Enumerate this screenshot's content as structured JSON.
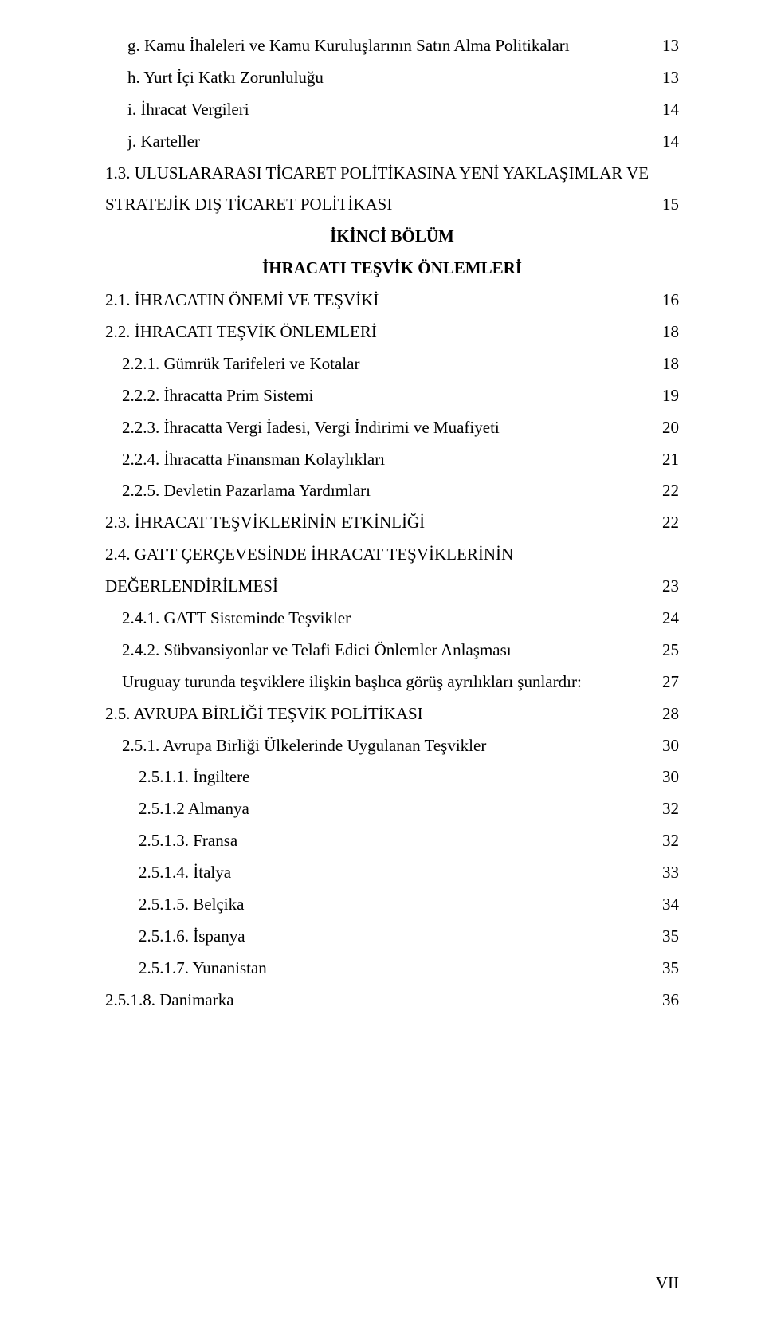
{
  "section_heading_1": "İKİNCİ BÖLÜM",
  "section_heading_2": "İHRACATI TEŞVİK ÖNLEMLERİ",
  "page_number": "VII",
  "entries": [
    {
      "indent": "indent0",
      "title": "g. Kamu İhaleleri ve Kamu Kuruluşlarının Satın Alma Politikaları",
      "page": "13"
    },
    {
      "indent": "indent0",
      "title": "h. Yurt İçi Katkı Zorunluluğu",
      "page": "13"
    },
    {
      "indent": "indent0",
      "title": "i. İhracat Vergileri",
      "page": "14"
    },
    {
      "indent": "indent0",
      "title": "j. Karteller",
      "page": "14"
    },
    {
      "indent": "indent1",
      "title_a": "1.3. ULUSLARARASI TİCARET POLİTİKASINA YENİ YAKLAŞIMLAR VE",
      "title_b": "STRATEJİK DIŞ TİCARET POLİTİKASI",
      "page": "15",
      "multiline": true
    },
    {
      "heading": true
    },
    {
      "indent": "indent1",
      "title": "2.1. İHRACATIN ÖNEMİ VE TEŞVİKİ",
      "page": "16"
    },
    {
      "indent": "indent1",
      "title": "2.2. İHRACATI TEŞVİK ÖNLEMLERİ",
      "page": "18"
    },
    {
      "indent": "indent2",
      "title": "2.2.1. Gümrük Tarifeleri ve Kotalar",
      "page": "18"
    },
    {
      "indent": "indent2",
      "title": "2.2.2. İhracatta Prim Sistemi",
      "page": "19"
    },
    {
      "indent": "indent2",
      "title": "2.2.3. İhracatta Vergi İadesi, Vergi İndirimi ve Muafiyeti",
      "page": "20"
    },
    {
      "indent": "indent2",
      "title": "2.2.4. İhracatta Finansman Kolaylıkları",
      "page": "21"
    },
    {
      "indent": "indent2",
      "title": "2.2.5. Devletin Pazarlama Yardımları",
      "page": "22"
    },
    {
      "indent": "indent1",
      "title": "2.3. İHRACAT TEŞVİKLERİNİN ETKİNLİĞİ",
      "page": "22"
    },
    {
      "indent": "indent1",
      "title_a": "2.4. GATT ÇERÇEVESİNDE İHRACAT TEŞVİKLERİNİN",
      "title_b": "DEĞERLENDİRİLMESİ",
      "page": "23",
      "multiline": true
    },
    {
      "indent": "indent2",
      "title": "2.4.1. GATT Sisteminde Teşvikler",
      "page": "24"
    },
    {
      "indent": "indent2",
      "title": "2.4.2. Sübvansiyonlar ve Telafi Edici Önlemler Anlaşması",
      "page": "25"
    },
    {
      "indent": "indent2",
      "title": "Uruguay turunda teşviklere ilişkin başlıca görüş ayrılıkları şunlardır:",
      "page": "27"
    },
    {
      "indent": "indent1",
      "title": "2.5. AVRUPA BİRLİĞİ TEŞVİK POLİTİKASI",
      "page": "28"
    },
    {
      "indent": "indent2",
      "title": "2.5.1. Avrupa Birliği Ülkelerinde Uygulanan Teşvikler",
      "page": "30"
    },
    {
      "indent": "indent3",
      "title": "2.5.1.1. İngiltere",
      "page": "30"
    },
    {
      "indent": "indent3",
      "title": "2.5.1.2 Almanya",
      "page": "32"
    },
    {
      "indent": "indent3",
      "title": "2.5.1.3. Fransa",
      "page": "32"
    },
    {
      "indent": "indent3",
      "title": "2.5.1.4. İtalya",
      "page": "33"
    },
    {
      "indent": "indent3",
      "title": "2.5.1.5. Belçika",
      "page": "34"
    },
    {
      "indent": "indent3",
      "title": "2.5.1.6. İspanya",
      "page": "35"
    },
    {
      "indent": "indent3",
      "title": "2.5.1.7. Yunanistan",
      "page": "35"
    },
    {
      "indent": "indent1",
      "title": "2.5.1.8. Danimarka",
      "page": "36"
    }
  ]
}
